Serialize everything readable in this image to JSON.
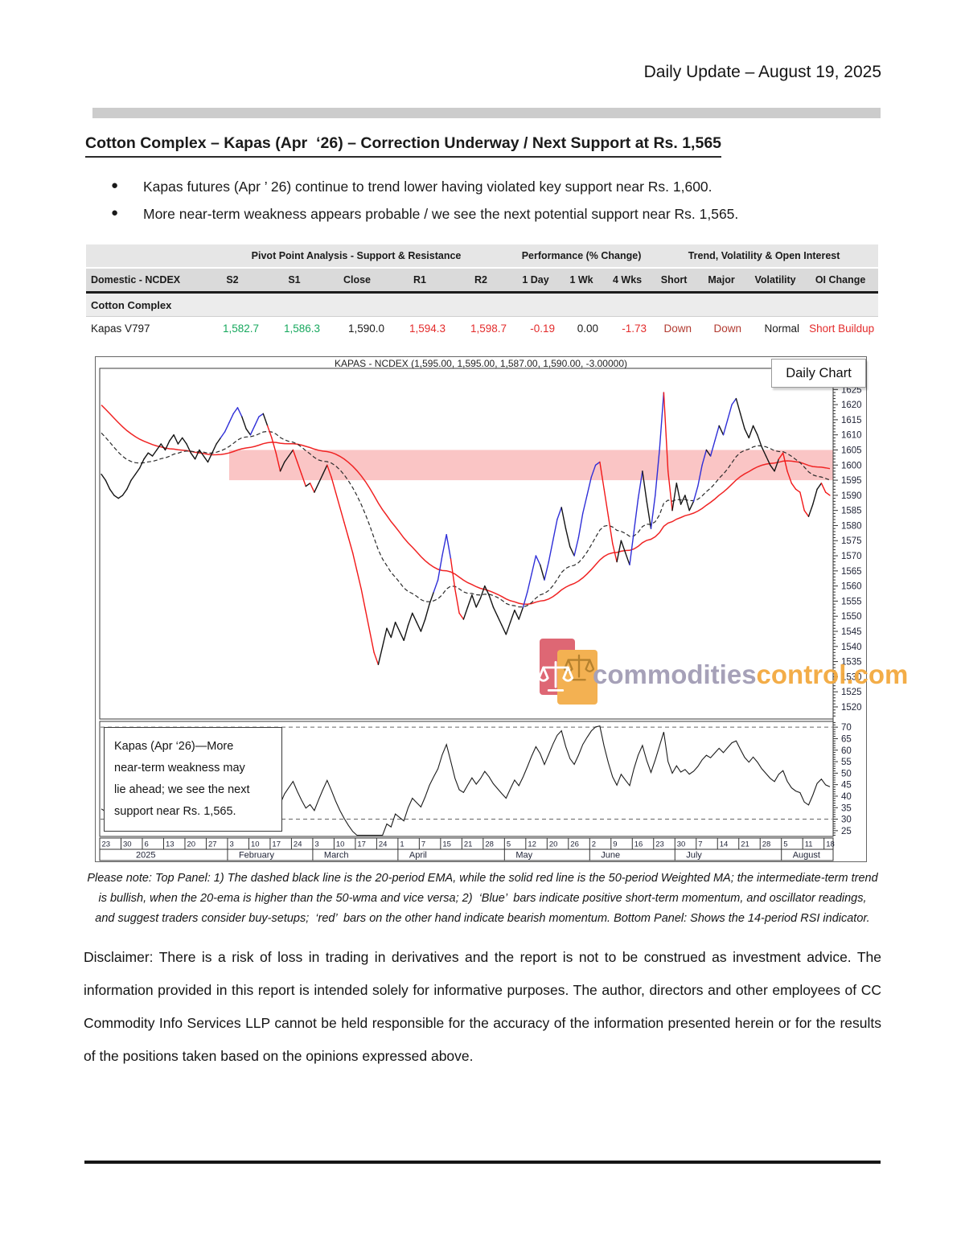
{
  "page": {
    "header_right": "Daily Update – August 19, 2025",
    "section_title": "Cotton Complex – Kapas (Apr  ‘26) – Correction Underway / Next Support at Rs. 1,565",
    "bullets": [
      "Kapas futures (Apr ’ 26) continue to trend lower having violated key support near Rs. 1,600.",
      "More near-term weakness appears probable / we see the next potential support near Rs. 1,565."
    ],
    "note_lines": [
      "Please note: Top Panel: 1) The dashed black line is the 20-period EMA, while the solid red line is the 50-period Weighted MA; the intermediate-term trend",
      "is bullish, when the 20-ema is higher than the 50-wma and vice versa; 2)  ‘Blue’  bars indicate positive short-term momentum, and oscillator readings,",
      "and suggest traders consider buy-setups;  ‘red’  bars on the other hand indicate bearish momentum. Bottom Panel: Shows the 14-period RSI indicator."
    ],
    "disclaimer": "Disclaimer: There is a risk of loss in trading in derivatives and the report is not to be construed as investment advice. The information provided in this report is intended solely for informative purposes. The author, directors and other employees of CC Commodity Info Services LLP cannot be held responsible for the accuracy of the information presented herein or for the results of the positions taken based on the opinions expressed above."
  },
  "table": {
    "group_headers": [
      "Pivot Point Analysis - Support & Resistance",
      "Performance (% Change)",
      "Trend, Volatility & Open Interest"
    ],
    "columns": [
      "Domestic - NCDEX",
      "S2",
      "S1",
      "Close",
      "R1",
      "R2",
      "1 Day",
      "1 Wk",
      "4 Wks",
      "Short",
      "Major",
      "Volatility",
      "OI Change"
    ],
    "section_row": "Cotton Complex",
    "row": {
      "name": "Kapas V797",
      "cells": [
        {
          "v": "1,582.7",
          "c": "green"
        },
        {
          "v": "1,586.3",
          "c": "green"
        },
        {
          "v": "1,590.0",
          "c": "black"
        },
        {
          "v": "1,594.3",
          "c": "red"
        },
        {
          "v": "1,598.7",
          "c": "red"
        },
        {
          "v": "-0.19",
          "c": "red"
        },
        {
          "v": "0.00",
          "c": "black"
        },
        {
          "v": "-1.73",
          "c": "red"
        },
        {
          "v": "Down",
          "c": "dred"
        },
        {
          "v": "Down",
          "c": "dred"
        },
        {
          "v": "Normal",
          "c": "black"
        },
        {
          "v": "Short Buildup",
          "c": "red"
        }
      ]
    }
  },
  "chart_data": {
    "type": "line",
    "title": "KAPAS - NCDEX (1,595.00, 1,595.00, 1,587.00, 1,590.00, -3.00000)",
    "badge": "Daily Chart",
    "annotation": "Kapas (Apr  ‘26)—More\nnear-term weakness may\nlie ahead; we see the next\nsupport near Rs. 1,565.",
    "watermark": {
      "gray": "commodities",
      "orange": "control.com"
    },
    "price_axis": {
      "min": 1520,
      "max": 1630,
      "step": 5
    },
    "rsi_axis": {
      "min": 25,
      "max": 70,
      "step": 5,
      "dashed_levels": [
        70,
        30
      ]
    },
    "support_band": {
      "from": 1595,
      "to": 1605,
      "color": "#f9b6b6",
      "start_index": 30
    },
    "legend_notes": {
      "dashed_black": "20-period EMA",
      "solid_red": "50-period Weighted MA",
      "bottom": "14-period RSI"
    },
    "x_ticks": [
      "23",
      "30",
      "6",
      "13",
      "20",
      "27",
      "3",
      "10",
      "17",
      "24",
      "3",
      "10",
      "17",
      "24",
      "1",
      "7",
      "15",
      "21",
      "28",
      "5",
      "12",
      "20",
      "26",
      "2",
      "9",
      "16",
      "23",
      "30",
      "7",
      "14",
      "21",
      "28",
      "5",
      "11",
      "18"
    ],
    "months": [
      {
        "label": "2025",
        "span": 6
      },
      {
        "label": "February",
        "span": 4
      },
      {
        "label": "March",
        "span": 4
      },
      {
        "label": "April",
        "span": 5
      },
      {
        "label": "May",
        "span": 4
      },
      {
        "label": "June",
        "span": 4
      },
      {
        "label": "July",
        "span": 5
      },
      {
        "label": "August",
        "span": 3
      }
    ],
    "price_colors": {
      "k": "#141414",
      "b": "#2f2fd8",
      "r": "#f21818"
    },
    "close": [
      1597,
      1595,
      1592,
      1590,
      1589,
      1590,
      1592,
      1595,
      1597,
      1599,
      1602,
      1604,
      1603,
      1605,
      1607,
      1605,
      1608,
      1610,
      1607,
      1609,
      1607,
      1604,
      1602,
      1605,
      1603,
      1601,
      1604,
      1607,
      1609,
      1611,
      1614,
      1617,
      1619,
      1616,
      1612,
      1610,
      1613,
      1616,
      1617,
      1613,
      1609,
      1604,
      1598,
      1601,
      1603,
      1605,
      1601,
      1597,
      1593,
      1594,
      1591,
      1594,
      1597,
      1600,
      1596,
      1591,
      1586,
      1581,
      1576,
      1571,
      1565,
      1559,
      1552,
      1545,
      1538,
      1534,
      1540,
      1546,
      1543,
      1548,
      1545,
      1542,
      1547,
      1551,
      1548,
      1545,
      1549,
      1554,
      1558,
      1562,
      1570,
      1577,
      1569,
      1559,
      1551,
      1549,
      1553,
      1557,
      1553,
      1556,
      1560,
      1557,
      1553,
      1550,
      1547,
      1544,
      1548,
      1552,
      1549,
      1553,
      1558,
      1564,
      1570,
      1567,
      1562,
      1568,
      1575,
      1582,
      1586,
      1579,
      1573,
      1570,
      1576,
      1584,
      1590,
      1596,
      1600,
      1601,
      1592,
      1583,
      1574,
      1568,
      1575,
      1571,
      1567,
      1578,
      1589,
      1598,
      1588,
      1579,
      1590,
      1605,
      1624,
      1598,
      1585,
      1594,
      1587,
      1590,
      1585,
      1588,
      1593,
      1600,
      1605,
      1603,
      1608,
      1613,
      1610,
      1615,
      1620,
      1622,
      1617,
      1612,
      1609,
      1613,
      1610,
      1606,
      1603,
      1600,
      1598,
      1602,
      1604,
      1598,
      1594,
      1592,
      1591,
      1585,
      1583,
      1587,
      1592,
      1594,
      1591,
      1590
    ],
    "seg": [
      "kkkkk",
      "kkkkk",
      "kkkkk",
      "kkkkk",
      "kkkkk",
      "kkkkb",
      "bbbbk",
      "kbbbk",
      "rrrkk",
      "krrrk",
      "rkkkr",
      "rrrrr",
      "rrrrr",
      "rkkkk",
      "kkkkk",
      "kkkkb",
      "bbbrr",
      "rkkkk",
      "kkkkk",
      "kkkkk",
      "bbbbk",
      "bbbbk",
      "kkbbb",
      "bbbrr",
      "rrkkk",
      "bbbkk",
      "bbbrr",
      "kkkkk",
      "bbbkb",
      "bkbbb",
      "kkkkk",
      "kkkkk",
      "rrrrr",
      "rrkkk",
      "rr"
    ]
  }
}
